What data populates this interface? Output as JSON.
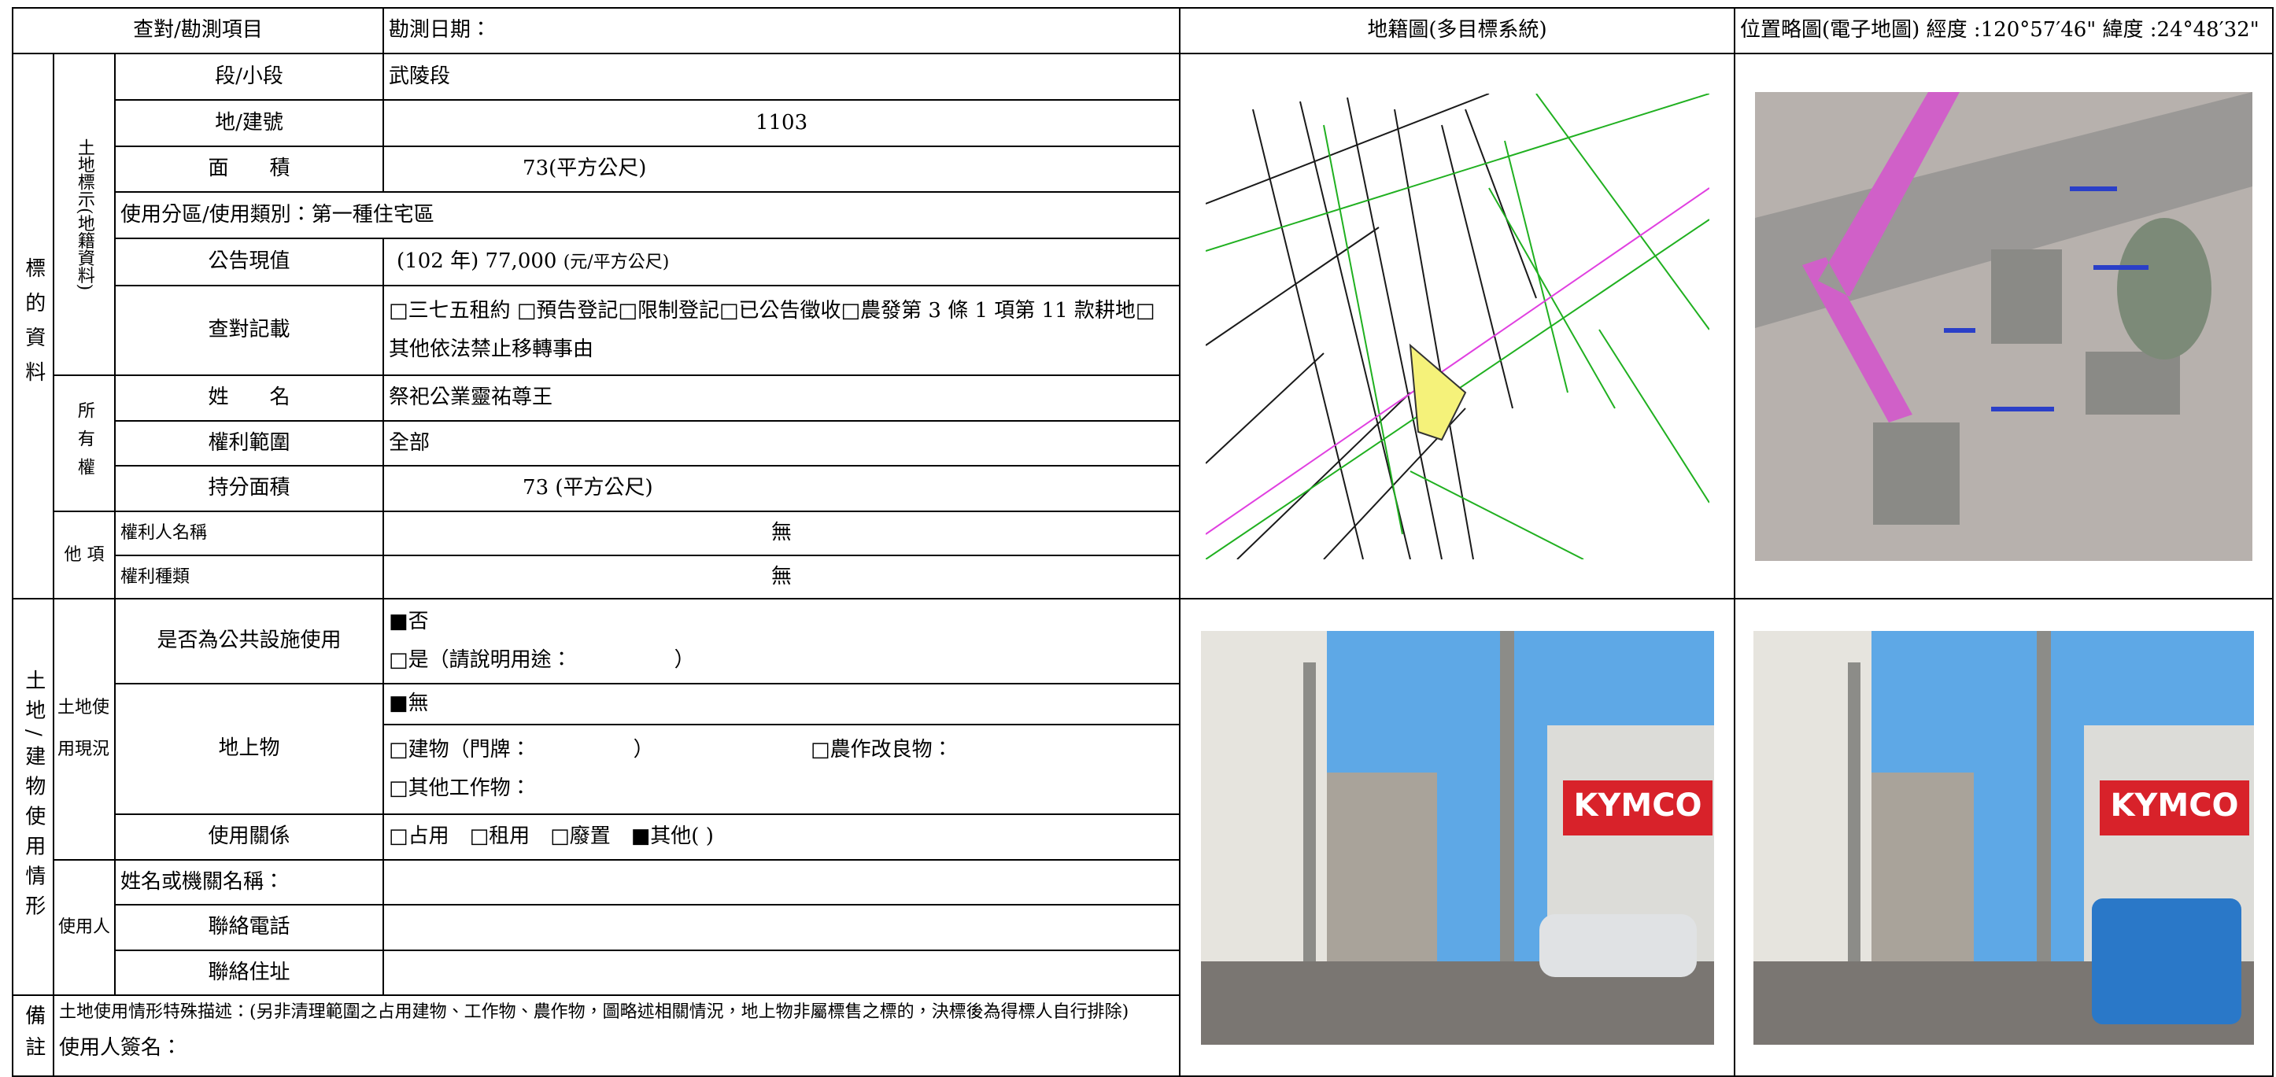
{
  "header": {
    "item": "查對/勘測項目",
    "survey_date": "勘測日期：",
    "cadastral_map": "地籍圖(多目標系統)",
    "location_map": "位置略圖(電子地圖) 經度 :120°57′46\" 緯度 :24°48′32\""
  },
  "subject": {
    "title": "標的資料",
    "land": {
      "title": "土地標示(地籍資料)",
      "section_label": "段/小段",
      "section": "武陵段",
      "number_label": "地/建號",
      "number": "1103",
      "area_label": "面　　積",
      "area": "73(平方公尺)",
      "zoning": "使用分區/使用類別：第一種住宅區",
      "value_label": "公告現值",
      "value": "(102 年)  77,000",
      "value_unit": "(元/平方公尺)",
      "record_label": "查對記載",
      "record": "□三七五租約 □預告登記□限制登記□已公告徵收□農發第 3 條 1 項第 11 款耕地□其他依法禁止移轉事由"
    },
    "ownership": {
      "title": "所有權",
      "name_label": "姓　　名",
      "name": "祭祀公業靈祐尊王",
      "scope_label": "權利範圍",
      "scope": "全部",
      "share_label": "持分面積",
      "share": "73 (平方公尺)"
    },
    "other_rights": {
      "title": "他 項",
      "holder_label": "權利人名稱",
      "holder": "無",
      "kind_label": "權利種類",
      "kind": "無"
    }
  },
  "usage": {
    "title": "土地/建物使用情形",
    "current": {
      "title": "土地使用現況",
      "public_label": "是否為公共設施使用",
      "public_no": "■否",
      "public_yes": "□是（請說明用途：　　　　　）",
      "structures_label": "地上物",
      "structures_none": "■無",
      "structures_building": "□建物（門牌：　　　　　）",
      "structures_crop": "□農作改良物：",
      "structures_other": "□其他工作物：",
      "relation_label": "使用關係",
      "relation": "□占用　□租用　□廢置　■其他( )"
    },
    "user": {
      "title": "使用人",
      "name_label": "姓名或機關名稱：",
      "phone_label": "聯絡電話",
      "address_label": "聯絡住址"
    }
  },
  "remarks": {
    "title": "備註",
    "description": "土地使用情形特殊描述：(另非清理範圍之占用建物、工作物、農作物，圖略述相關情況，地上物非屬標售之標的，決標後為得標人自行排除)",
    "signature": "使用人簽名："
  }
}
